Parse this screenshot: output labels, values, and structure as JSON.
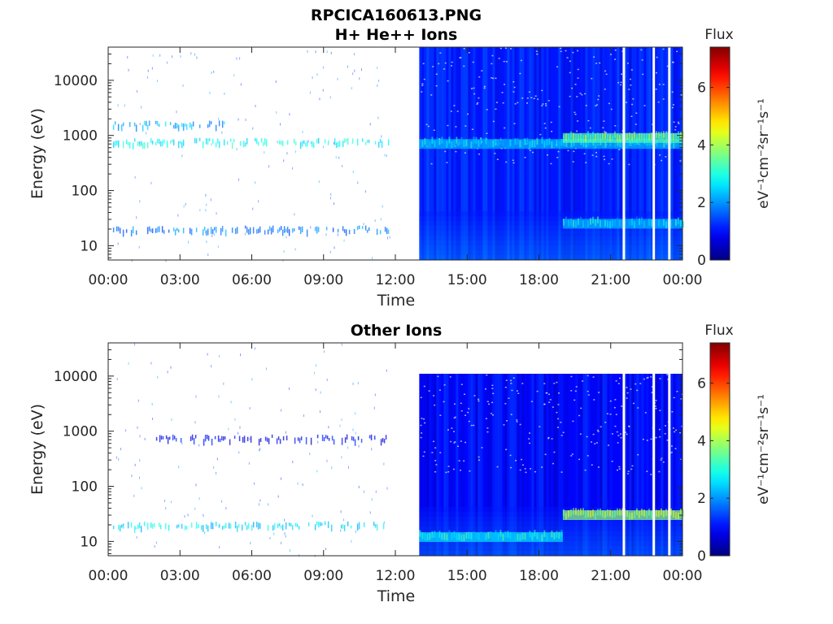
{
  "figure_title": "RPCICA160613.PNG",
  "chart_data": [
    {
      "type": "heatmap",
      "panel": "top",
      "title": "H+ He++ Ions",
      "xlabel": "Time",
      "ylabel": "Energy (eV)",
      "x_ticks": [
        "00:00",
        "03:00",
        "06:00",
        "09:00",
        "12:00",
        "15:00",
        "18:00",
        "21:00",
        "00:00"
      ],
      "x_range_hours": [
        0,
        24
      ],
      "y_scale": "log",
      "y_ticks": [
        "10",
        "100",
        "1000",
        "10000"
      ],
      "y_range": [
        5.5,
        40000
      ],
      "colorbar": {
        "title": "Flux",
        "label": "eV⁻¹cm⁻²sr⁻¹s⁻¹",
        "ticks": [
          "0",
          "2",
          "4",
          "6"
        ],
        "range": [
          0,
          7.4
        ],
        "colormap": "jet"
      },
      "features": [
        {
          "name": "sparse band",
          "t_start_h": 0.2,
          "t_end_h": 11.7,
          "energy_ev": 700,
          "flux": 2.8
        },
        {
          "name": "sparse band",
          "t_start_h": 0.2,
          "t_end_h": 5.0,
          "energy_ev": 1450,
          "flux": 2.2
        },
        {
          "name": "low-energy patches",
          "t_start_h": 0.2,
          "t_end_h": 11.7,
          "energy_ev": 18,
          "flux": 1.8
        },
        {
          "name": "dense data",
          "t_start_h": 13.0,
          "t_end_h": 24.0,
          "background_flux": 1.2
        },
        {
          "name": "ion band",
          "t_start_h": 13.0,
          "t_end_h": 24.0,
          "energy_ev": 700,
          "flux": 2.3
        },
        {
          "name": "enhanced band",
          "t_start_h": 19.0,
          "t_end_h": 24.0,
          "energy_ev": 900,
          "flux": 3.4
        },
        {
          "name": "low-energy enhancement",
          "t_start_h": 19.0,
          "t_end_h": 24.0,
          "energy_ev": 25,
          "flux": 2.3
        }
      ],
      "data_gaps_h": [
        21.55,
        22.8,
        23.45
      ]
    },
    {
      "type": "heatmap",
      "panel": "bottom",
      "title": "Other Ions",
      "xlabel": "Time",
      "ylabel": "Energy (eV)",
      "x_ticks": [
        "00:00",
        "03:00",
        "06:00",
        "09:00",
        "12:00",
        "15:00",
        "18:00",
        "21:00",
        "00:00"
      ],
      "x_range_hours": [
        0,
        24
      ],
      "y_scale": "log",
      "y_ticks": [
        "10",
        "100",
        "1000",
        "10000"
      ],
      "y_range": [
        5.5,
        40000
      ],
      "colorbar": {
        "title": "Flux",
        "label": "eV⁻¹cm⁻²sr⁻¹s⁻¹",
        "ticks": [
          "0",
          "2",
          "4",
          "6"
        ],
        "range": [
          0,
          7.4
        ],
        "colormap": "jet"
      },
      "features": [
        {
          "name": "faint band",
          "t_start_h": 2.0,
          "t_end_h": 11.7,
          "energy_ev": 680,
          "flux": 0.8
        },
        {
          "name": "low-energy band",
          "t_start_h": 0.2,
          "t_end_h": 11.7,
          "energy_ev": 18,
          "flux": 2.6
        },
        {
          "name": "dense data",
          "t_start_h": 13.0,
          "t_end_h": 24.0,
          "background_flux": 1.0,
          "upper_energy_ev": 11000
        },
        {
          "name": "low-energy band",
          "t_start_h": 13.0,
          "t_end_h": 19.0,
          "energy_ev": 12,
          "flux": 2.6
        },
        {
          "name": "low-energy enhancement",
          "t_start_h": 19.0,
          "t_end_h": 24.0,
          "energy_ev": 30,
          "flux": 3.8
        }
      ],
      "data_gaps_h": [
        21.55,
        22.8,
        23.45
      ]
    }
  ]
}
